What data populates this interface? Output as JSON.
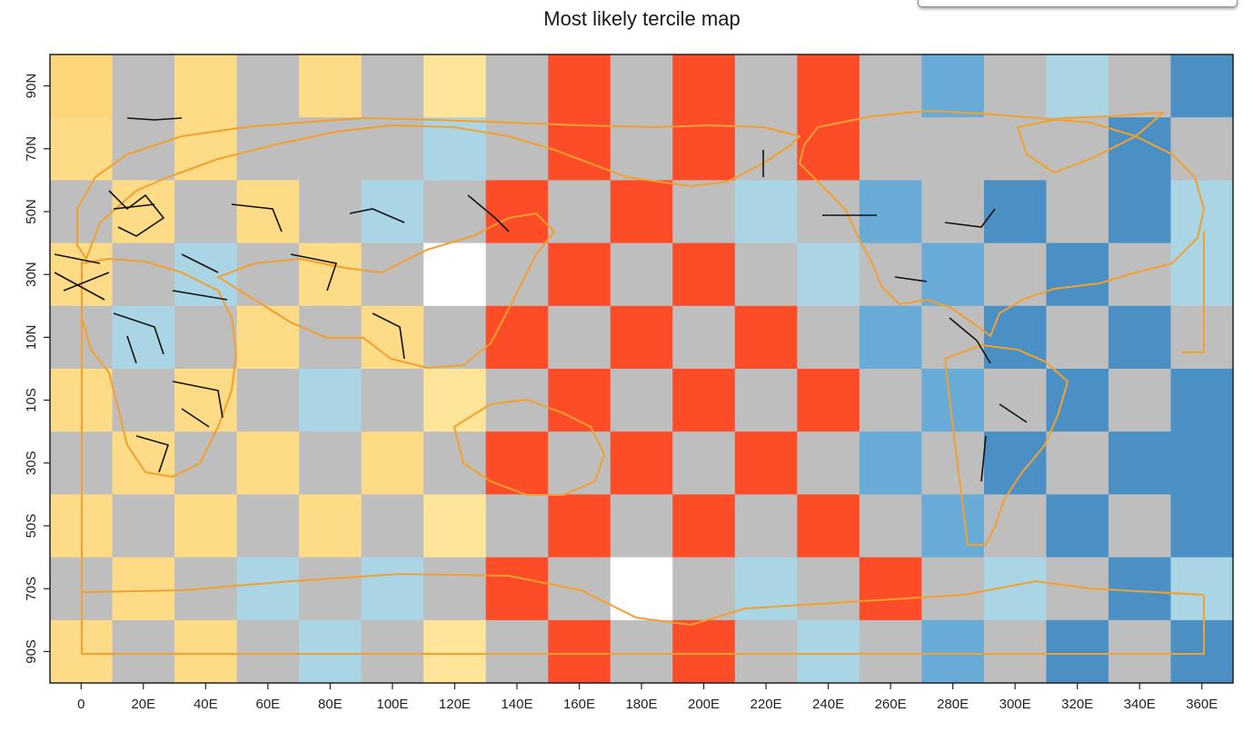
{
  "title": "Most likely tercile map",
  "colors": {
    "above_strong": "#4a90c4",
    "above_medium": "#67abd6",
    "above_light": "#a9d5e5",
    "below_strong": "#fd4d28",
    "normal_light": "#fee599",
    "normal_medium": "#fedc87",
    "normal_strong": "#fdd67a",
    "no_data": "#bebebe",
    "missing": "#ffffff",
    "coast": "#f2a030",
    "border": "#000000"
  },
  "x_axis": {
    "ticks": [
      "0",
      "20E",
      "40E",
      "60E",
      "80E",
      "100E",
      "120E",
      "140E",
      "160E",
      "180E",
      "200E",
      "220E",
      "240E",
      "260E",
      "280E",
      "300E",
      "320E",
      "340E",
      "360E"
    ]
  },
  "y_axis": {
    "ticks": [
      "90N",
      "70N",
      "50N",
      "30N",
      "10N",
      "10S",
      "30S",
      "50S",
      "70S",
      "90S"
    ]
  },
  "map": {
    "lon_range": [
      -10,
      370
    ],
    "lat_range": [
      -100,
      100
    ],
    "cell_size_deg": 20,
    "rows": [
      "Y G N G N G L G R G R G R G A G B G D",
      "N G N G G G B G R G R G R G G G G D G",
      "G N G N G B G R G R G B G A G D G D B",
      "N G B G N G W G R G R G B G A G D G B",
      "G B G N G N G R G R G R G A G D G D G",
      "N G N G B G L G R G R G R G A G D G D",
      "G N G N G N G R G R G R G A G D G D D",
      "N G N G N G L G R G R G R G A G D G D",
      "G N G B G B G R G W G B G R G B G D B",
      "N G N G B G L G R G R G B G A G D G D"
    ]
  }
}
